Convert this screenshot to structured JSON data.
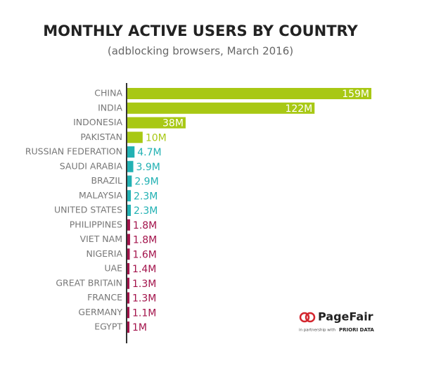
{
  "chart_data": {
    "type": "bar",
    "orientation": "horizontal",
    "title": "MONTHLY ACTIVE USERS BY COUNTRY",
    "subtitle": "(adblocking browsers, March 2016)",
    "categories": [
      "CHINA",
      "INDIA",
      "INDONESIA",
      "PAKISTAN",
      "RUSSIAN FEDERATION",
      "SAUDI ARABIA",
      "BRAZIL",
      "MALAYSIA",
      "UNITED STATES",
      "PHILIPPINES",
      "VIET NAM",
      "NIGERIA",
      "UAE",
      "GREAT BRITAIN",
      "FRANCE",
      "GERMANY",
      "EGYPT"
    ],
    "values": [
      159,
      122,
      38,
      10,
      4.7,
      3.9,
      2.9,
      2.3,
      2.3,
      1.8,
      1.8,
      1.6,
      1.4,
      1.3,
      1.3,
      1.1,
      1
    ],
    "value_labels": [
      "159M",
      "122M",
      "38M",
      "10M",
      "4.7M",
      "3.9M",
      "2.9M",
      "2.3M",
      "2.3M",
      "1.8M",
      "1.8M",
      "1.6M",
      "1.4M",
      "1.3M",
      "1.3M",
      "1.1M",
      "1M"
    ],
    "colors": [
      "#a8c814",
      "#a8c814",
      "#a8c814",
      "#a8c814",
      "#22b1b3",
      "#22b1b3",
      "#22b1b3",
      "#22b1b3",
      "#22b1b3",
      "#a3134b",
      "#a3134b",
      "#a3134b",
      "#a3134b",
      "#a3134b",
      "#a3134b",
      "#a3134b",
      "#a3134b"
    ]
  },
  "branding": {
    "name": "PageFair",
    "partner_note": "in partnership with",
    "partner": "PRIORI DATA"
  }
}
